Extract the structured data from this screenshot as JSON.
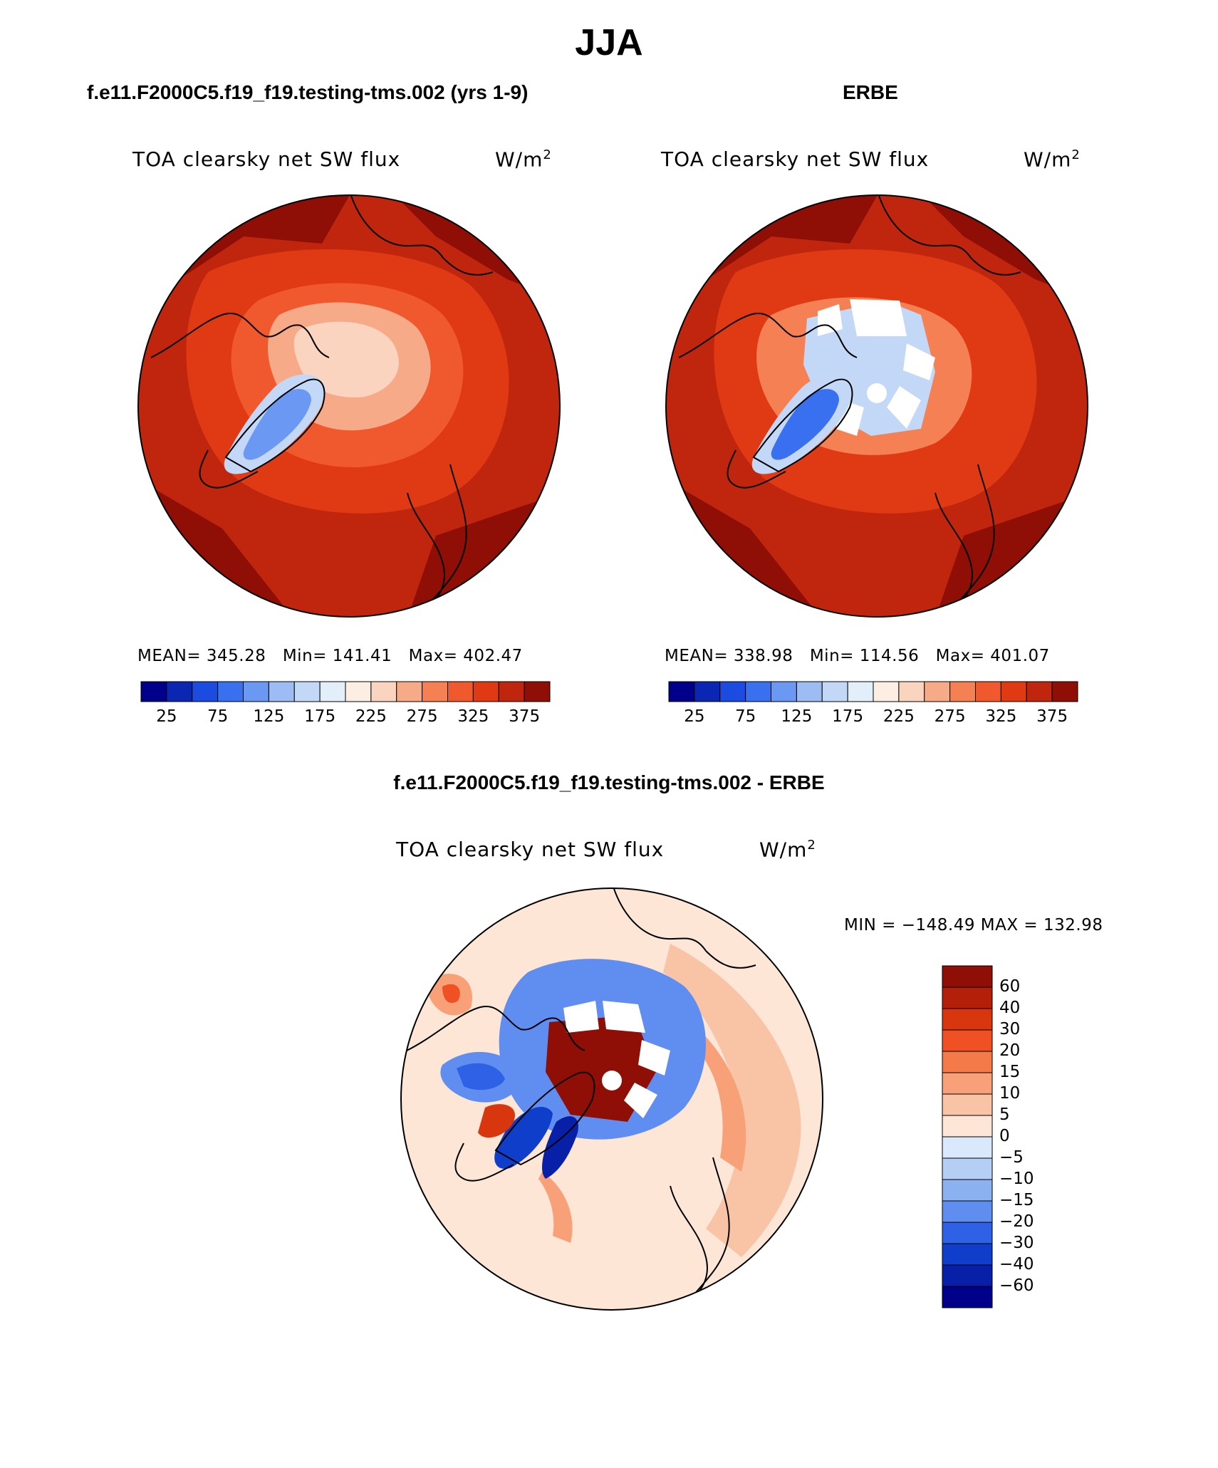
{
  "title": "JJA",
  "panels": [
    {
      "id": "model",
      "title": "f.e11.F2000C5.f19_f19.testing-tms.002 (yrs 1-9)",
      "variable": "TOA clearsky net SW flux",
      "units_base": "W/m",
      "units_exp": "2",
      "stats": {
        "mean_label": "MEAN=",
        "mean": "345.28",
        "min_label": "Min=",
        "min": "141.41",
        "max_label": "Max=",
        "max": "402.47"
      },
      "colorbar_ticks": [
        "25",
        "75",
        "125",
        "175",
        "225",
        "275",
        "325",
        "375"
      ]
    },
    {
      "id": "obs",
      "title": "ERBE",
      "variable": "TOA clearsky net SW flux",
      "units_base": "W/m",
      "units_exp": "2",
      "stats": {
        "mean_label": "MEAN=",
        "mean": "338.98",
        "min_label": "Min=",
        "min": "114.56",
        "max_label": "Max=",
        "max": "401.07"
      },
      "colorbar_ticks": [
        "25",
        "75",
        "125",
        "175",
        "225",
        "275",
        "325",
        "375"
      ]
    }
  ],
  "diff": {
    "title": "f.e11.F2000C5.f19_f19.testing-tms.002 - ERBE",
    "variable": "TOA clearsky net SW flux",
    "units_base": "W/m",
    "units_exp": "2",
    "minmax": "MIN = −148.49 MAX = 132.98",
    "colorbar_labels": [
      "60",
      "40",
      "30",
      "20",
      "15",
      "10",
      "5",
      "0",
      "−5",
      "−10",
      "−15",
      "−20",
      "−30",
      "−40",
      "−60"
    ]
  },
  "colors": {
    "abs_scale": [
      "#00008a",
      "#0c26b4",
      "#1b4be0",
      "#3870f0",
      "#6a98f2",
      "#9dbcf3",
      "#c3d7f6",
      "#e3eefb",
      "#fdeee3",
      "#fbd4c0",
      "#f7aa88",
      "#f48054",
      "#f0582e",
      "#e03a14",
      "#c0260e",
      "#8f0e06"
    ],
    "diff_scale": [
      "#8f0e06",
      "#b41f0a",
      "#d8360f",
      "#ef5024",
      "#f57a4a",
      "#f8a178",
      "#f9c3a6",
      "#fde6d6",
      "#d9e8fa",
      "#b5cff4",
      "#8cb1f1",
      "#5f8ef0",
      "#2f61e6",
      "#0f3fca",
      "#0820a8",
      "#00008a"
    ]
  },
  "chart_data": {
    "type": "heatmap",
    "projection": "north polar stereographic",
    "maps": [
      {
        "name": "f.e11.F2000C5.f19_f19.testing-tms.002 (yrs 1-9)",
        "variable": "TOA clearsky net SW flux",
        "units": "W/m2",
        "mean": 345.28,
        "min": 141.41,
        "max": 402.47,
        "levels": [
          25,
          50,
          75,
          100,
          125,
          150,
          175,
          200,
          225,
          250,
          275,
          300,
          325,
          350,
          375
        ]
      },
      {
        "name": "ERBE",
        "variable": "TOA clearsky net SW flux",
        "units": "W/m2",
        "mean": 338.98,
        "min": 114.56,
        "max": 401.07,
        "levels": [
          25,
          50,
          75,
          100,
          125,
          150,
          175,
          200,
          225,
          250,
          275,
          300,
          325,
          350,
          375
        ]
      },
      {
        "name": "f.e11.F2000C5.f19_f19.testing-tms.002 - ERBE",
        "variable": "TOA clearsky net SW flux",
        "units": "W/m2",
        "min": -148.49,
        "max": 132.98,
        "levels": [
          -60,
          -40,
          -30,
          -20,
          -15,
          -10,
          -5,
          0,
          5,
          10,
          15,
          20,
          30,
          40,
          60
        ]
      }
    ]
  }
}
